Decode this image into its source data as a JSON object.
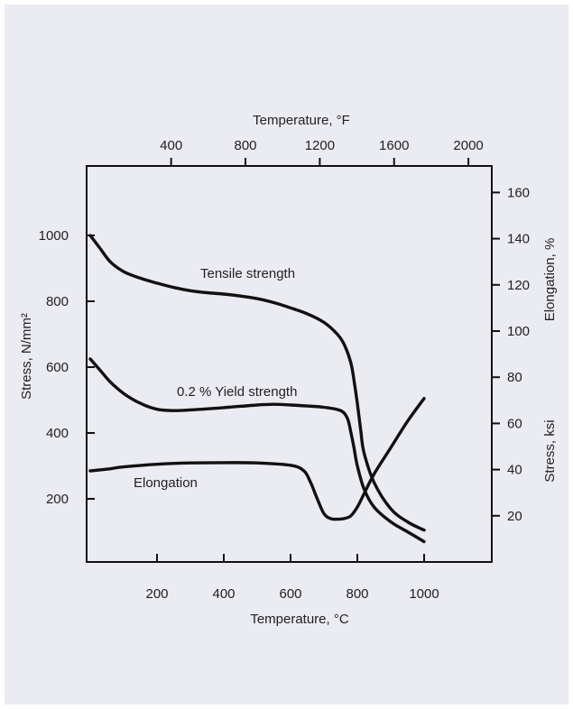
{
  "chart_data": {
    "type": "line",
    "x_bottom": {
      "label": "Temperature, °C",
      "range": [
        0,
        1000
      ],
      "ticks": [
        200,
        400,
        600,
        800,
        1000
      ]
    },
    "x_top": {
      "label": "Temperature, °F",
      "range": [
        32,
        1832
      ],
      "ticks": [
        400,
        800,
        1200,
        1600,
        2000
      ]
    },
    "y_left": {
      "label": "Stress, N/mm²",
      "range": [
        0,
        1150
      ],
      "ticks": [
        200,
        400,
        600,
        800,
        1000
      ]
    },
    "y_right_stress": {
      "label": "Stress, ksi",
      "ticks": [
        20,
        40,
        60,
        80,
        100,
        120,
        140,
        160
      ]
    },
    "y_right_elongation": {
      "label": "Elongation, %"
    },
    "grid": false,
    "series": [
      {
        "name": "Tensile strength",
        "x": [
          0,
          30,
          60,
          100,
          150,
          200,
          250,
          300,
          350,
          400,
          450,
          500,
          550,
          600,
          650,
          700,
          740,
          760,
          780,
          790,
          800,
          810,
          820,
          850,
          900,
          950,
          1000
        ],
        "y": [
          1000,
          960,
          920,
          890,
          870,
          855,
          842,
          832,
          826,
          822,
          816,
          808,
          796,
          780,
          762,
          736,
          700,
          670,
          615,
          560,
          490,
          410,
          340,
          250,
          170,
          130,
          105
        ]
      },
      {
        "name": "0.2 % Yield strength",
        "x": [
          0,
          30,
          60,
          100,
          150,
          200,
          250,
          300,
          400,
          500,
          550,
          600,
          650,
          700,
          750,
          770,
          780,
          790,
          800,
          820,
          850,
          900,
          950,
          1000
        ],
        "y": [
          625,
          590,
          555,
          520,
          490,
          472,
          468,
          470,
          477,
          485,
          487,
          485,
          482,
          478,
          468,
          445,
          405,
          355,
          300,
          230,
          175,
          130,
          100,
          70
        ]
      },
      {
        "name": "Elongation",
        "x": [
          0,
          50,
          100,
          200,
          300,
          400,
          500,
          600,
          640,
          660,
          680,
          700,
          720,
          740,
          760,
          780,
          800,
          820,
          850,
          900,
          950,
          1000
        ],
        "y": [
          285,
          290,
          297,
          305,
          309,
          310,
          309,
          302,
          285,
          250,
          200,
          155,
          140,
          138,
          140,
          148,
          175,
          215,
          275,
          355,
          435,
          505
        ]
      }
    ],
    "annotations": [
      {
        "text": "Tensile strength",
        "x": 350,
        "y": 880
      },
      {
        "text": "0.2 % Yield strength",
        "x": 270,
        "y": 500
      },
      {
        "text": "Elongation",
        "x": 145,
        "y": 240
      }
    ]
  }
}
